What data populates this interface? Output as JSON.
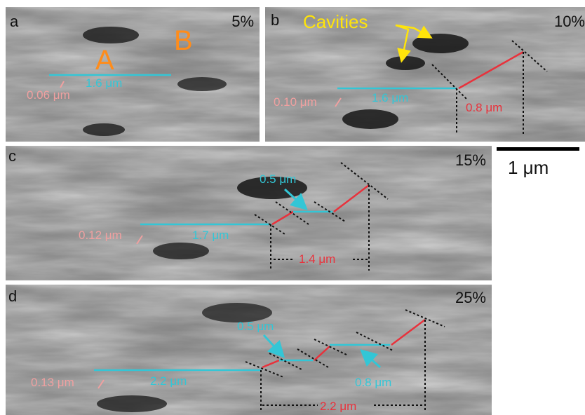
{
  "panels": {
    "a": {
      "label": "a",
      "percent": "5%",
      "letter_a": "A",
      "letter_b": "B",
      "width_label": "1.6 μm",
      "thickness_label": "0.06 μm"
    },
    "b": {
      "label": "b",
      "percent": "10%",
      "cavities": "Cavities",
      "width_label": "1.6 μm",
      "thickness_label": "0.10 μm",
      "offset_label": "0.8 μm"
    },
    "c": {
      "label": "c",
      "percent": "15%",
      "width_label": "1.7 μm",
      "gap_label": "0.5 μm",
      "thickness_label": "0.12 μm",
      "offset_label": "1.4 μm"
    },
    "d": {
      "label": "d",
      "percent": "25%",
      "width_label": "2.2 μm",
      "gap_label": "0.5 μm",
      "gap2_label": "0.8 μm",
      "thickness_label": "0.13 μm",
      "offset_label": "2.2 μm"
    }
  },
  "scale_bar": {
    "label": "1 μm"
  },
  "colors": {
    "cyan": "#33c6d6",
    "red": "#e8323c",
    "pink": "#f0a0a0",
    "orange": "#ff8c1a",
    "yellow": "#ffe40a"
  }
}
